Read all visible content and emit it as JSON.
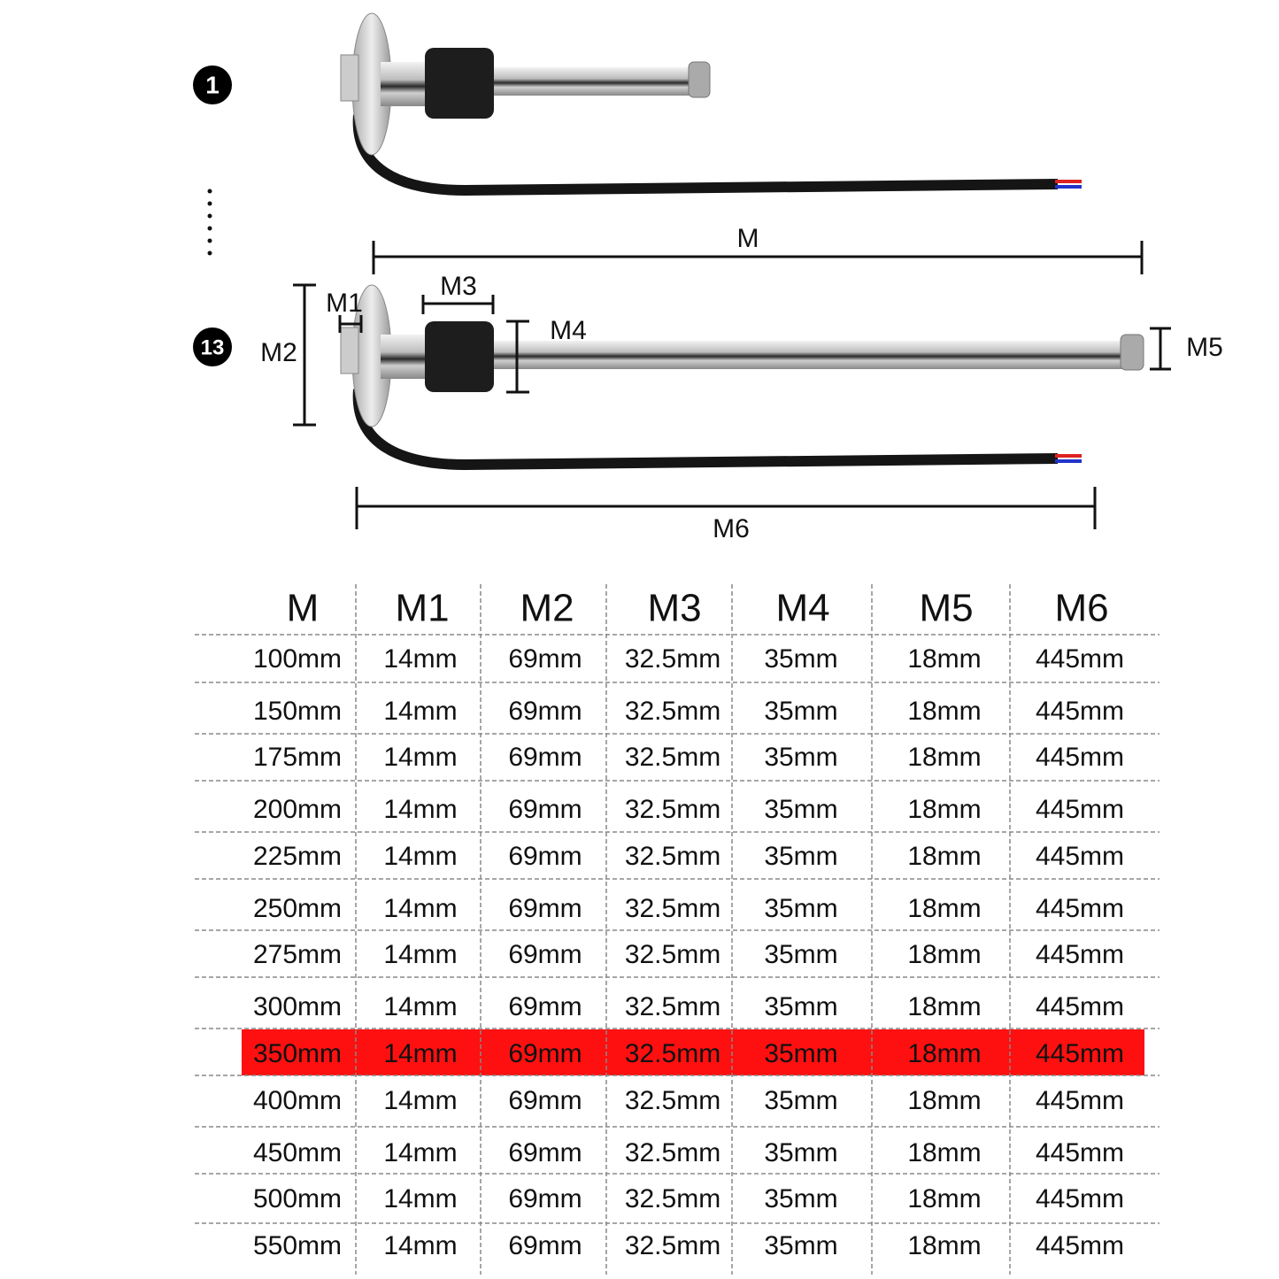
{
  "diagram": {
    "markers": [
      "1",
      "13"
    ],
    "dimension_labels": [
      "M",
      "M1",
      "M2",
      "M3",
      "M4",
      "M5",
      "M6"
    ]
  },
  "table": {
    "header": [
      "M",
      "M1",
      "M2",
      "M3",
      "M4",
      "M5",
      "M6"
    ],
    "rows": [
      [
        "100mm",
        "14mm",
        "69mm",
        "32.5mm",
        "35mm",
        "18mm",
        "445mm"
      ],
      [
        "150mm",
        "14mm",
        "69mm",
        "32.5mm",
        "35mm",
        "18mm",
        "445mm"
      ],
      [
        "175mm",
        "14mm",
        "69mm",
        "32.5mm",
        "35mm",
        "18mm",
        "445mm"
      ],
      [
        "200mm",
        "14mm",
        "69mm",
        "32.5mm",
        "35mm",
        "18mm",
        "445mm"
      ],
      [
        "225mm",
        "14mm",
        "69mm",
        "32.5mm",
        "35mm",
        "18mm",
        "445mm"
      ],
      [
        "250mm",
        "14mm",
        "69mm",
        "32.5mm",
        "35mm",
        "18mm",
        "445mm"
      ],
      [
        "275mm",
        "14mm",
        "69mm",
        "32.5mm",
        "35mm",
        "18mm",
        "445mm"
      ],
      [
        "300mm",
        "14mm",
        "69mm",
        "32.5mm",
        "35mm",
        "18mm",
        "445mm"
      ],
      [
        "350mm",
        "14mm",
        "69mm",
        "32.5mm",
        "35mm",
        "18mm",
        "445mm"
      ],
      [
        "400mm",
        "14mm",
        "69mm",
        "32.5mm",
        "35mm",
        "18mm",
        "445mm"
      ],
      [
        "450mm",
        "14mm",
        "69mm",
        "32.5mm",
        "35mm",
        "18mm",
        "445mm"
      ],
      [
        "500mm",
        "14mm",
        "69mm",
        "32.5mm",
        "35mm",
        "18mm",
        "445mm"
      ],
      [
        "550mm",
        "14mm",
        "69mm",
        "32.5mm",
        "35mm",
        "18mm",
        "445mm"
      ]
    ],
    "highlight": {
      "row": 8,
      "color": "#ff1010"
    }
  }
}
